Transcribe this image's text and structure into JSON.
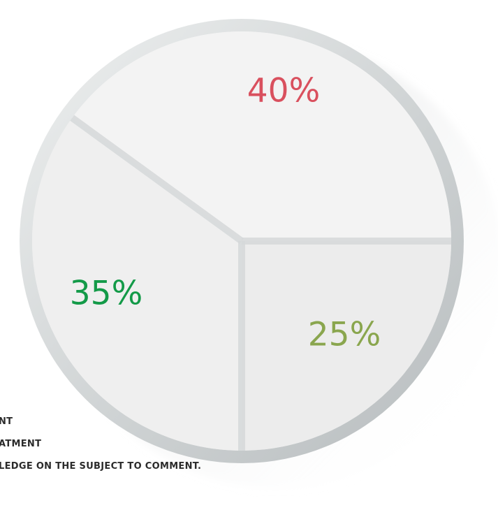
{
  "chart_data": {
    "type": "pie",
    "values": [
      40,
      25,
      35
    ],
    "labels": [
      "40%",
      "25%",
      "35%"
    ],
    "colors": [
      "#d9505e",
      "#8aa64e",
      "#139a48"
    ],
    "legend": [
      "NT",
      "ATMENT",
      "LEDGE ON THE SUBJECT TO COMMENT."
    ]
  }
}
